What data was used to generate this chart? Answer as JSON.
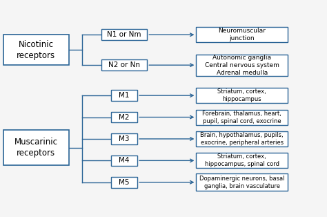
{
  "bg_color": "#f5f5f5",
  "border_color": "#2a6496",
  "line_color": "#2a6496",
  "nicotinic_label": "Nicotinic\nreceptors",
  "muscarinic_label": "Muscarinic\nreceptors",
  "nic_subtypes": [
    {
      "label": "N1 or Nm",
      "desc": "Neuromuscular\njunction"
    },
    {
      "label": "N2 or Nn",
      "desc": "Autonomic ganglia\nCentral nervous system\nAdrenal medulla"
    }
  ],
  "mus_subtypes": [
    {
      "label": "M1",
      "desc": "Striatum, cortex,\nhippocampus"
    },
    {
      "label": "M2",
      "desc": "Forebrain, thalamus, heart,\npupil, spinal cord, exocrine"
    },
    {
      "label": "M3",
      "desc": "Brain, hypothalamus, pupils,\nexocrine, peripheral arteries"
    },
    {
      "label": "M4",
      "desc": "Striatum, cortex,\nhippocampus, spinal cord"
    },
    {
      "label": "M5",
      "desc": "Dopaminergic neurons, basal\nganglia, brain vasculature"
    }
  ]
}
